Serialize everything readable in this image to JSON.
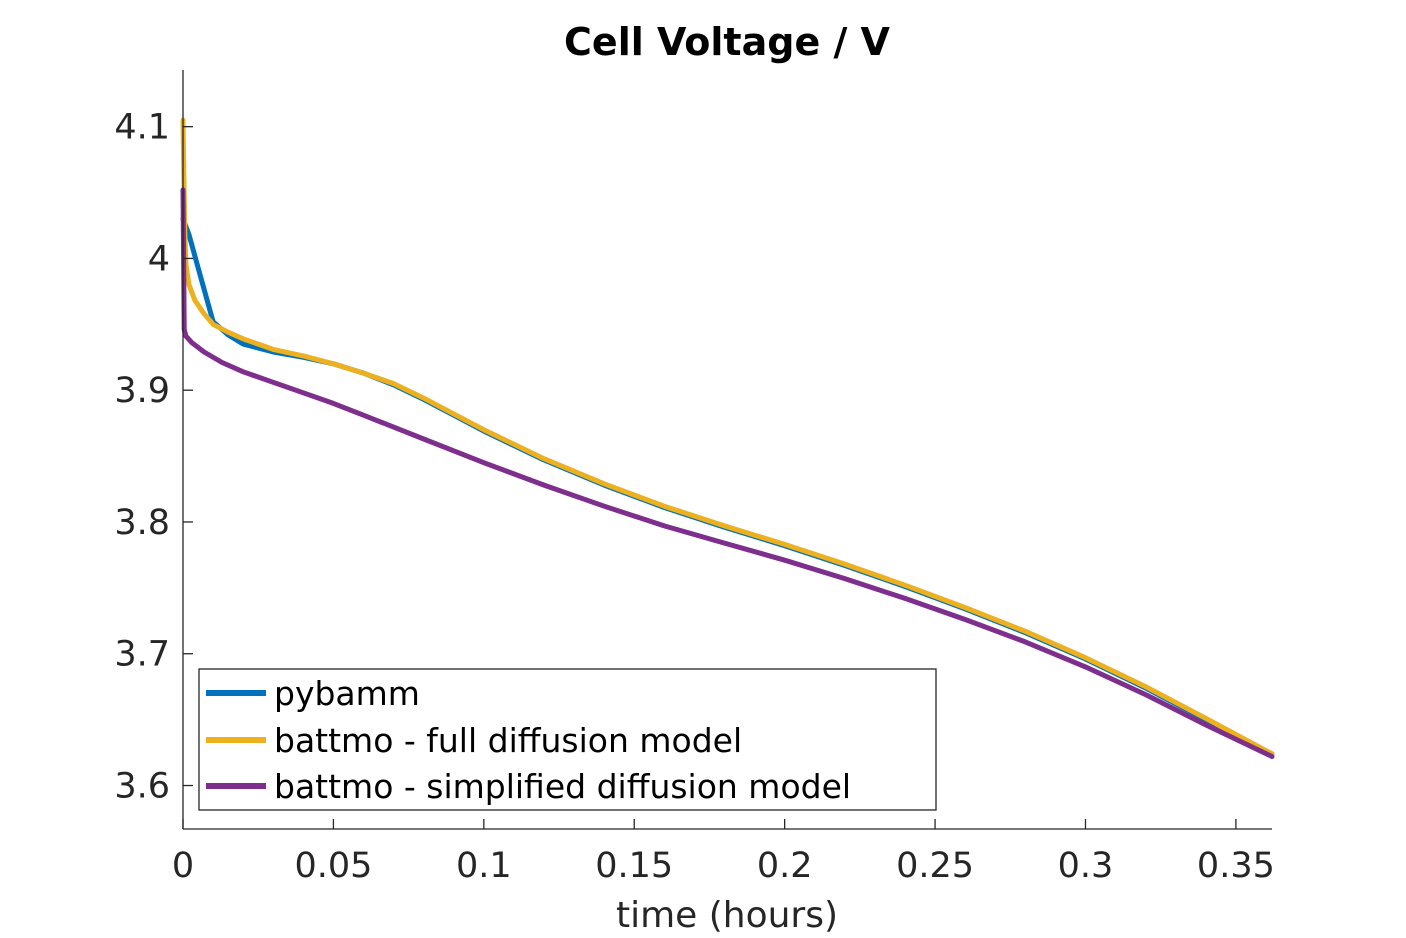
{
  "chart_data": {
    "type": "line",
    "title": "Cell Voltage / V",
    "xlabel": "time (hours)",
    "ylabel": "",
    "xlim": [
      0,
      0.362
    ],
    "ylim": [
      3.567,
      4.143
    ],
    "xticks": [
      0,
      0.05,
      0.1,
      0.15,
      0.2,
      0.25,
      0.3,
      0.35
    ],
    "xtick_labels": [
      "0",
      "0.05",
      "0.1",
      "0.15",
      "0.2",
      "0.25",
      "0.3",
      "0.35"
    ],
    "yticks": [
      3.6,
      3.7,
      3.8,
      3.9,
      4.0,
      4.1
    ],
    "ytick_labels": [
      "3.6",
      "3.7",
      "3.8",
      "3.9",
      "4",
      "4.1"
    ],
    "grid": false,
    "legend_position": "bottom-left",
    "series": [
      {
        "name": "pybamm",
        "color": "#0072bd",
        "x": [
          0,
          0.002,
          0.006,
          0.01,
          0.015,
          0.02,
          0.03,
          0.04,
          0.05,
          0.06,
          0.07,
          0.08,
          0.09,
          0.1,
          0.12,
          0.14,
          0.16,
          0.18,
          0.2,
          0.22,
          0.24,
          0.26,
          0.28,
          0.3,
          0.32,
          0.34,
          0.362
        ],
        "y": [
          4.03,
          4.018,
          3.985,
          3.952,
          3.942,
          3.935,
          3.929,
          3.925,
          3.92,
          3.913,
          3.904,
          3.893,
          3.881,
          3.869,
          3.847,
          3.828,
          3.811,
          3.796,
          3.782,
          3.767,
          3.751,
          3.734,
          3.716,
          3.696,
          3.674,
          3.65,
          3.624
        ]
      },
      {
        "name": "battmo - full diffusion model",
        "color": "#edb120",
        "x": [
          0,
          0.0003,
          0.0006,
          0.001,
          0.002,
          0.004,
          0.007,
          0.01,
          0.015,
          0.02,
          0.03,
          0.04,
          0.05,
          0.06,
          0.07,
          0.08,
          0.09,
          0.1,
          0.12,
          0.14,
          0.16,
          0.18,
          0.2,
          0.22,
          0.24,
          0.26,
          0.28,
          0.3,
          0.32,
          0.34,
          0.362
        ],
        "y": [
          4.105,
          4.06,
          4.02,
          3.995,
          3.98,
          3.968,
          3.958,
          3.95,
          3.944,
          3.939,
          3.931,
          3.926,
          3.92,
          3.913,
          3.905,
          3.894,
          3.882,
          3.87,
          3.848,
          3.829,
          3.812,
          3.797,
          3.783,
          3.768,
          3.752,
          3.735,
          3.717,
          3.697,
          3.675,
          3.651,
          3.624
        ]
      },
      {
        "name": "battmo - simplified diffusion model",
        "color": "#7e2f8e",
        "x": [
          0,
          0.0002,
          0.0004,
          0.001,
          0.003,
          0.007,
          0.013,
          0.02,
          0.03,
          0.04,
          0.05,
          0.06,
          0.07,
          0.08,
          0.09,
          0.1,
          0.12,
          0.14,
          0.16,
          0.18,
          0.2,
          0.22,
          0.24,
          0.26,
          0.28,
          0.3,
          0.32,
          0.34,
          0.362
        ],
        "y": [
          4.052,
          4.0,
          3.946,
          3.941,
          3.936,
          3.929,
          3.921,
          3.914,
          3.906,
          3.898,
          3.89,
          3.881,
          3.872,
          3.863,
          3.854,
          3.845,
          3.828,
          3.812,
          3.797,
          3.784,
          3.771,
          3.757,
          3.742,
          3.726,
          3.709,
          3.69,
          3.669,
          3.646,
          3.622
        ]
      }
    ]
  }
}
